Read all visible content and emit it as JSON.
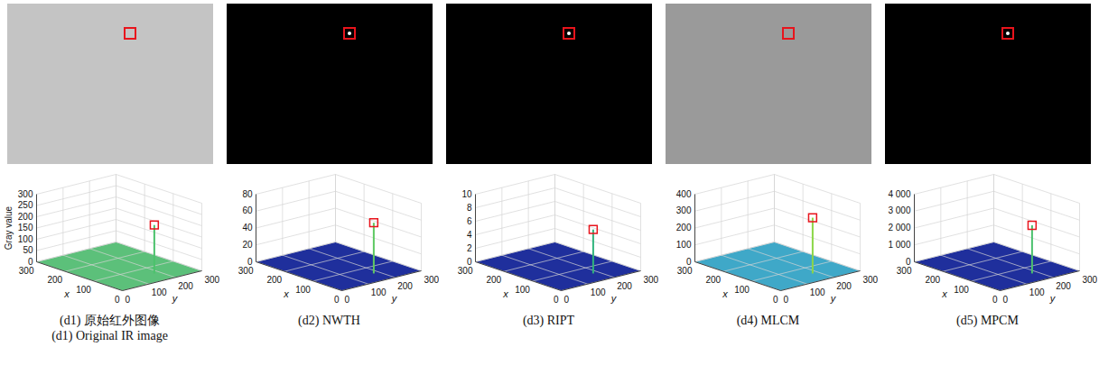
{
  "chart_data": [
    {
      "type": "surface",
      "title": "(d1) 原始红外图像",
      "subtitle": "(d1) Original IR image",
      "zlabel": "Gray value",
      "xlabel": "x",
      "ylabel": "y",
      "xlim": [
        0,
        300
      ],
      "ylim": [
        0,
        300
      ],
      "zlim": [
        0,
        300
      ],
      "xticks": [
        0,
        100,
        200,
        300
      ],
      "yticks": [
        0,
        100,
        200,
        300
      ],
      "zticks": [
        0,
        50,
        100,
        150,
        200,
        250,
        300
      ],
      "target": {
        "x": 55,
        "y": 180,
        "value": 215
      },
      "marker": "square",
      "color": "#e8141c",
      "colors": [
        "#c4c4c4",
        "#5cc07a"
      ]
    },
    {
      "type": "surface",
      "title": "(d2) NWTH",
      "xlabel": "x",
      "ylabel": "y",
      "xlim": [
        0,
        300
      ],
      "ylim": [
        0,
        300
      ],
      "zlim": [
        0,
        80
      ],
      "xticks": [
        0,
        100,
        200,
        300
      ],
      "yticks": [
        0,
        100,
        200,
        300
      ],
      "zticks": [
        0,
        20,
        40,
        60,
        80
      ],
      "target": {
        "x": 55,
        "y": 180,
        "value": 60
      },
      "marker": "square",
      "color": "#e8141c",
      "colors": [
        "#000000",
        "#1f2f9c"
      ]
    },
    {
      "type": "surface",
      "title": "(d3) RIPT",
      "xlabel": "x",
      "ylabel": "y",
      "xlim": [
        0,
        300
      ],
      "ylim": [
        0,
        300
      ],
      "zlim": [
        0,
        10
      ],
      "xticks": [
        0,
        100,
        200,
        300
      ],
      "yticks": [
        0,
        100,
        200,
        300
      ],
      "zticks": [
        0,
        2,
        4,
        6,
        8,
        10
      ],
      "target": {
        "x": 55,
        "y": 180,
        "value": 6.5
      },
      "marker": "square",
      "color": "#e8141c",
      "colors": [
        "#000000",
        "#1f2f9c"
      ]
    },
    {
      "type": "surface",
      "title": "(d4) MLCM",
      "xlabel": "x",
      "ylabel": "y",
      "xlim": [
        0,
        300
      ],
      "ylim": [
        0,
        300
      ],
      "zlim": [
        0,
        400
      ],
      "xticks": [
        0,
        100,
        200,
        300
      ],
      "yticks": [
        0,
        100,
        200,
        300
      ],
      "zticks": [
        0,
        100,
        200,
        300,
        400
      ],
      "target": {
        "x": 55,
        "y": 180,
        "value": 330
      },
      "marker": "square",
      "color": "#e8141c",
      "colors": [
        "#9a9a9a",
        "#3fa8c8"
      ]
    },
    {
      "type": "surface",
      "title": "(d5) MPCM",
      "xlabel": "x",
      "ylabel": "y",
      "xlim": [
        0,
        300
      ],
      "ylim": [
        0,
        300
      ],
      "zlim": [
        0,
        4000
      ],
      "xticks": [
        0,
        100,
        200,
        300
      ],
      "yticks": [
        0,
        100,
        200,
        300
      ],
      "zticks": [
        0,
        {
          "value": 1000,
          "label": "1 000"
        },
        {
          "value": 2000,
          "label": "2 000"
        },
        {
          "value": 3000,
          "label": "3 000"
        },
        {
          "value": 4000,
          "label": "4 000"
        }
      ],
      "target": {
        "x": 55,
        "y": 180,
        "value": 2850
      },
      "marker": "square",
      "color": "#e8141c",
      "colors": [
        "#000000",
        "#1f2f9c"
      ]
    }
  ]
}
